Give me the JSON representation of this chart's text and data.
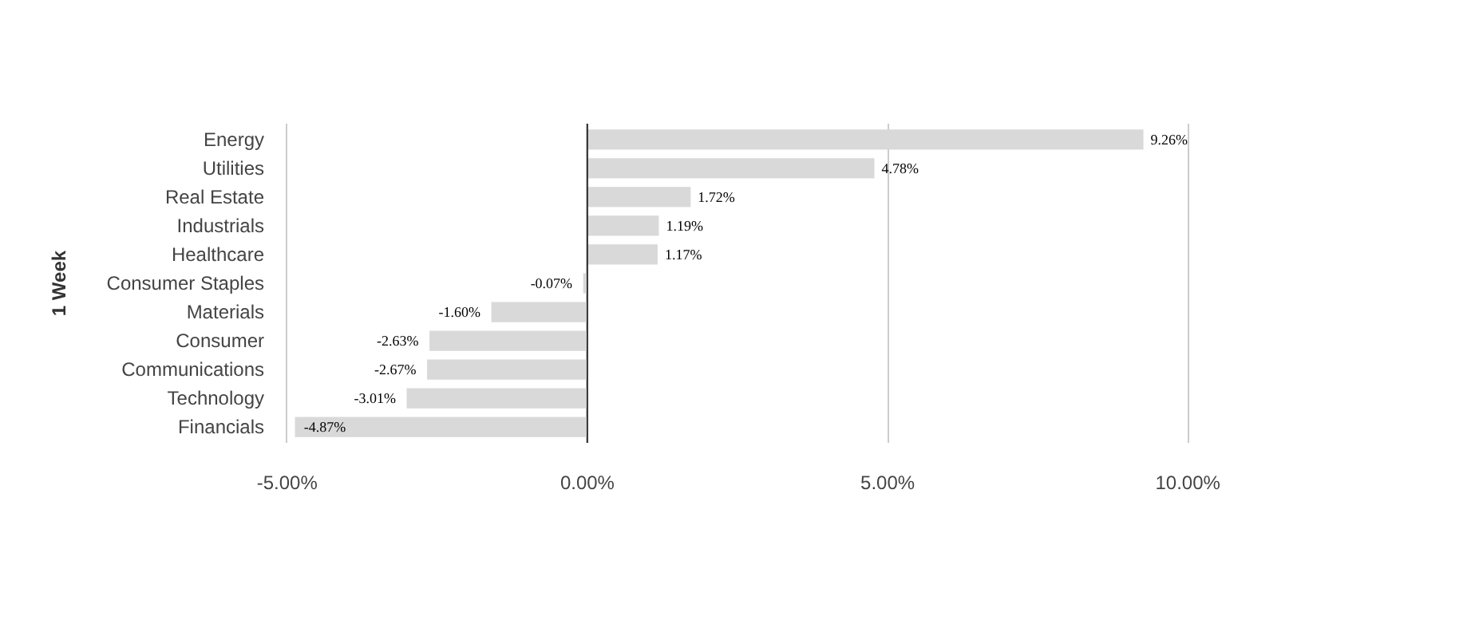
{
  "chart_data": {
    "type": "bar",
    "orientation": "horizontal",
    "ylabel": "1 Week",
    "categories": [
      "Energy",
      "Utilities",
      "Real Estate",
      "Industrials",
      "Healthcare",
      "Consumer Staples",
      "Materials",
      "Consumer",
      "Communications",
      "Technology",
      "Financials"
    ],
    "values": [
      9.26,
      4.78,
      1.72,
      1.19,
      1.17,
      -0.07,
      -1.6,
      -2.63,
      -2.67,
      -3.01,
      -4.87
    ],
    "value_labels": [
      "9.26%",
      "4.78%",
      "1.72%",
      "1.19%",
      "1.17%",
      "-0.07%",
      "-1.60%",
      "-2.63%",
      "-2.67%",
      "-3.01%",
      "-4.87%"
    ],
    "color": "#d9d9d9",
    "xlim": [
      -5,
      10
    ],
    "xticks": [
      {
        "value": -5,
        "label": "-5.00%"
      },
      {
        "value": 0,
        "label": "0.00%"
      },
      {
        "value": 5,
        "label": "5.00%"
      },
      {
        "value": 10,
        "label": "10.00%"
      }
    ],
    "grid": "x"
  }
}
